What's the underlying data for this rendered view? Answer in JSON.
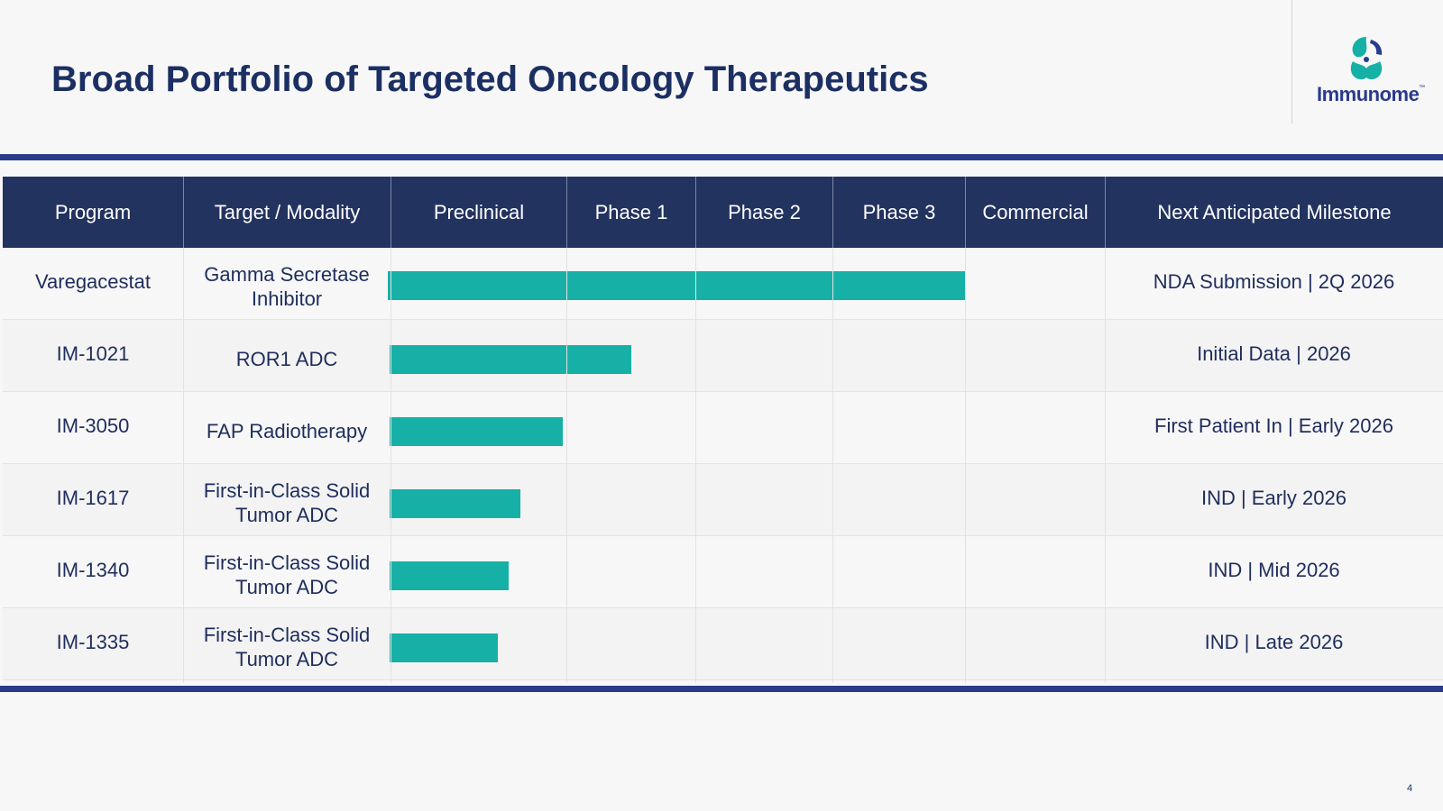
{
  "header": {
    "title": "Broad Portfolio of Targeted Oncology Therapeutics",
    "logo_text": "Immunome",
    "logo_tm": "™"
  },
  "colors": {
    "navy": "#23335f",
    "rule": "#2c3a8a",
    "bar": "#17b0a6",
    "title": "#1c2f63"
  },
  "chart_data": {
    "type": "bar",
    "orientation": "horizontal",
    "columns": [
      "Program",
      "Target / Modality",
      "Preclinical",
      "Phase 1",
      "Phase 2",
      "Phase 3",
      "Commercial",
      "Next Anticipated Milestone"
    ],
    "stages": [
      "Preclinical",
      "Phase 1",
      "Phase 2",
      "Phase 3",
      "Commercial"
    ],
    "rows": [
      {
        "program": "Varegacestat",
        "target": [
          "Gamma Secretase",
          "Inhibitor"
        ],
        "progress_stages": 4.0,
        "milestone": "NDA Submission | 2Q 2026"
      },
      {
        "program": "IM-1021",
        "target": [
          "ROR1 ADC"
        ],
        "progress_stages": 1.5,
        "milestone": "Initial Data | 2026"
      },
      {
        "program": "IM-3050",
        "target": [
          "FAP Radiotherapy"
        ],
        "progress_stages": 0.98,
        "milestone": "First Patient In | Early 2026"
      },
      {
        "program": "IM-1617",
        "target": [
          "First-in-Class Solid",
          "Tumor ADC"
        ],
        "progress_stages": 0.74,
        "milestone": "IND | Early 2026"
      },
      {
        "program": "IM-1340",
        "target": [
          "First-in-Class Solid",
          "Tumor ADC"
        ],
        "progress_stages": 0.67,
        "milestone": "IND | Mid 2026"
      },
      {
        "program": "IM-1335",
        "target": [
          "First-in-Class Solid",
          "Tumor ADC"
        ],
        "progress_stages": 0.61,
        "milestone": "IND | Late 2026"
      }
    ]
  },
  "footer": {
    "page_number": "4"
  }
}
